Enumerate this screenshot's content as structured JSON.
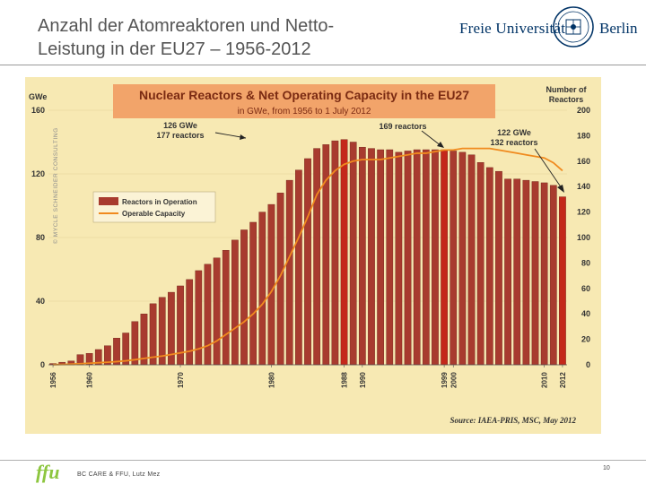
{
  "slide": {
    "title_line1": "Anzahl der Atomreaktoren und Netto-",
    "title_line2": "Leistung in der EU27 – 1956-2012",
    "logo_text_left": "Freie Universität",
    "logo_text_right": "Berlin",
    "footer_logo": "ffu",
    "footer_text": "BC CARE & FFU, Lutz Mez",
    "page_number": "10"
  },
  "colors": {
    "chart_background": "#f7e9b3",
    "bar": "#a83b2f",
    "bar_highlight": "#c4281b",
    "capacity_line": "#f08a1e",
    "title_box": "#f2a46a",
    "brand": "#003366",
    "ffu_green": "#8dc63f"
  },
  "chart_data": {
    "type": "bar",
    "title": "Nuclear Reactors & Net Operating Capacity in the EU27",
    "subtitle": "in GWe, from 1956 to 1 July 2012",
    "ylabel_left": "GWe",
    "ylabel_right": "Number of Reactors",
    "ylim_left": [
      0,
      160
    ],
    "yticks_left": [
      0,
      40,
      80,
      120,
      160
    ],
    "ylim_right": [
      0,
      200
    ],
    "yticks_right": [
      0,
      20,
      40,
      60,
      80,
      100,
      120,
      140,
      160,
      180,
      200
    ],
    "x": [
      1956,
      1957,
      1958,
      1959,
      1960,
      1961,
      1962,
      1963,
      1964,
      1965,
      1966,
      1967,
      1968,
      1969,
      1970,
      1971,
      1972,
      1973,
      1974,
      1975,
      1976,
      1977,
      1978,
      1979,
      1980,
      1981,
      1982,
      1983,
      1984,
      1985,
      1986,
      1987,
      1988,
      1989,
      1990,
      1991,
      1992,
      1993,
      1994,
      1995,
      1996,
      1997,
      1998,
      1999,
      2000,
      2001,
      2002,
      2003,
      2004,
      2005,
      2006,
      2007,
      2008,
      2009,
      2010,
      2011,
      2012
    ],
    "xtick_labels": [
      "1956",
      "1960",
      "1970",
      "1980",
      "1988",
      "1990",
      "1999",
      "2000",
      "2010",
      "2012"
    ],
    "series": [
      {
        "name": "Reactors in Operation",
        "axis": "right",
        "values": [
          1,
          2,
          3,
          8,
          9,
          12,
          15,
          21,
          25,
          34,
          40,
          48,
          53,
          57,
          62,
          67,
          74,
          79,
          84,
          90,
          98,
          106,
          112,
          120,
          126,
          135,
          145,
          153,
          162,
          170,
          173,
          176,
          177,
          175,
          171,
          170,
          169,
          169,
          167,
          168,
          169,
          169,
          169,
          169,
          168,
          167,
          165,
          159,
          155,
          152,
          146,
          146,
          145,
          144,
          143,
          141,
          132
        ]
      },
      {
        "name": "Operable Capacity",
        "axis": "left",
        "values": [
          0.1,
          0.2,
          0.4,
          0.7,
          1,
          1.3,
          1.6,
          2,
          2.5,
          3.2,
          4,
          4.8,
          5.5,
          6.5,
          7.5,
          8.5,
          10,
          12,
          15,
          19,
          23,
          27,
          32,
          38,
          46,
          56,
          68,
          80,
          93,
          107,
          116,
          122,
          126,
          128,
          129,
          129,
          129,
          130,
          131,
          132,
          133,
          133,
          134,
          135,
          135,
          136,
          136,
          136,
          136,
          135,
          134,
          133,
          132,
          131,
          130,
          127,
          122
        ]
      }
    ],
    "highlight_years": [
      1988,
      1999,
      2012
    ],
    "annotations": [
      {
        "line1": "126 GWe",
        "line2": "177 reactors"
      },
      {
        "line1": "169 reactors",
        "line2": ""
      },
      {
        "line1": "122 GWe",
        "line2": "132 reactors"
      }
    ],
    "legend": {
      "position": "upper-left",
      "items": [
        "Reactors in Operation",
        "Operable Capacity"
      ]
    },
    "watermark": "© MYCLE SCHNEIDER CONSULTING",
    "source": "Source: IAEA-PRIS, MSC, May 2012"
  }
}
